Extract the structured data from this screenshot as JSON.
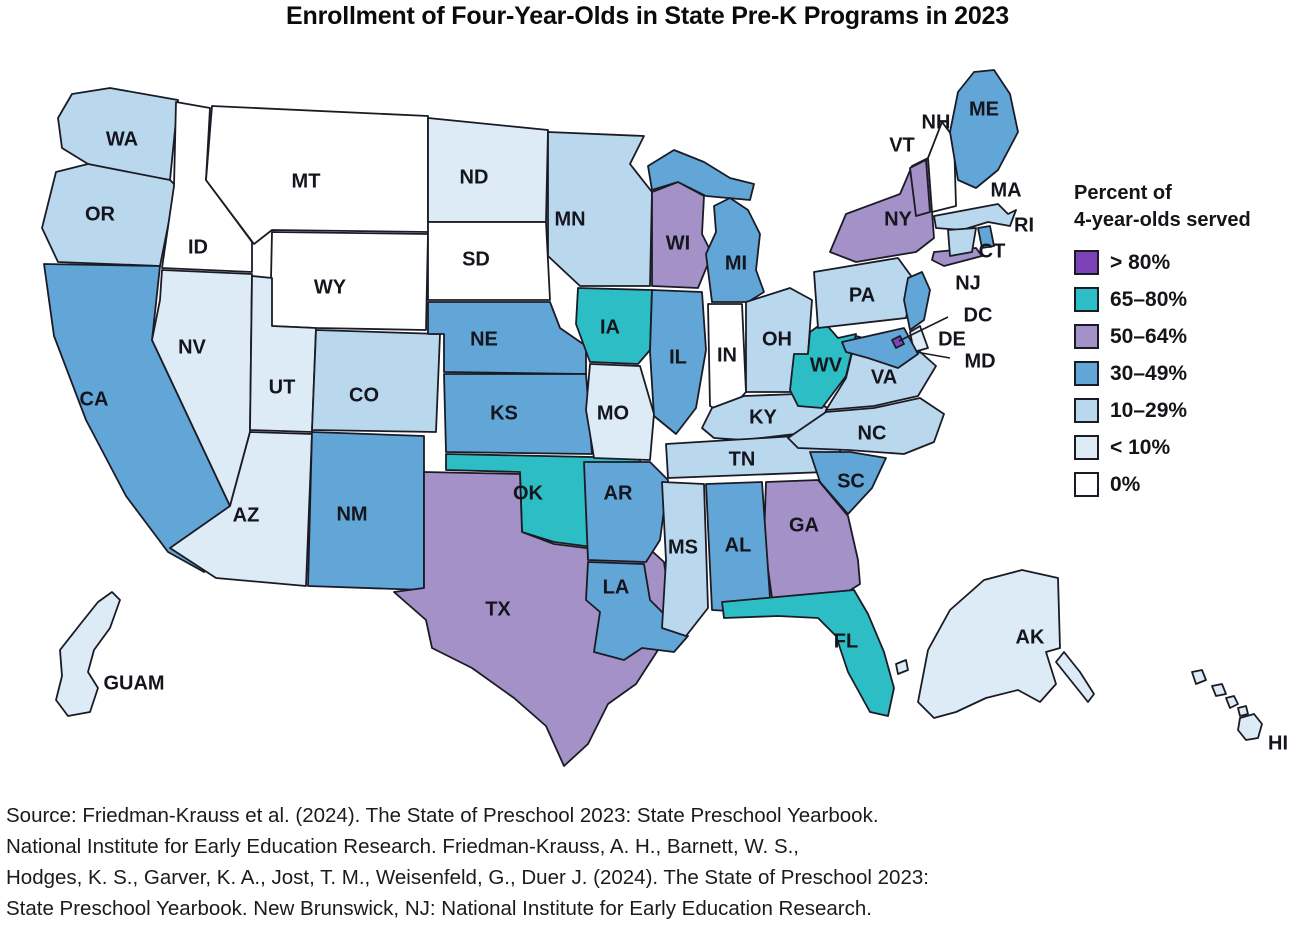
{
  "title": "Enrollment of Four-Year-Olds in State Pre-K Programs in 2023",
  "legend": {
    "title_line1": "Percent of",
    "title_line2": "4-year-olds served",
    "items": [
      {
        "label": "> 80%",
        "color": "#7b43b5"
      },
      {
        "label": "65–80%",
        "color": "#2dbdc5"
      },
      {
        "label": "50–64%",
        "color": "#a391c7"
      },
      {
        "label": "30–49%",
        "color": "#61a6d7"
      },
      {
        "label": "10–29%",
        "color": "#b9d8ee"
      },
      {
        "label": "< 10%",
        "color": "#dcebf5"
      },
      {
        "label": "0%",
        "color": "#ffffff"
      }
    ]
  },
  "map": {
    "border_color": "#1b1b26",
    "label_color": "#15151d"
  },
  "chart_data": {
    "type": "choropleth",
    "title": "Enrollment of Four-Year-Olds in State Pre-K Programs in 2023",
    "legend_title": "Percent of 4-year-olds served",
    "bins": [
      "> 80%",
      "65–80%",
      "50–64%",
      "30–49%",
      "10–29%",
      "< 10%",
      "0%"
    ],
    "states": [
      {
        "code": "WA",
        "category": "10–29%"
      },
      {
        "code": "OR",
        "category": "10–29%"
      },
      {
        "code": "CA",
        "category": "30–49%"
      },
      {
        "code": "NV",
        "category": "< 10%"
      },
      {
        "code": "ID",
        "category": "0%"
      },
      {
        "code": "MT",
        "category": "0%"
      },
      {
        "code": "WY",
        "category": "0%"
      },
      {
        "code": "UT",
        "category": "< 10%"
      },
      {
        "code": "AZ",
        "category": "< 10%"
      },
      {
        "code": "CO",
        "category": "10–29%"
      },
      {
        "code": "NM",
        "category": "30–49%"
      },
      {
        "code": "ND",
        "category": "< 10%"
      },
      {
        "code": "SD",
        "category": "0%"
      },
      {
        "code": "NE",
        "category": "30–49%"
      },
      {
        "code": "KS",
        "category": "30–49%"
      },
      {
        "code": "OK",
        "category": "65–80%"
      },
      {
        "code": "TX",
        "category": "50–64%"
      },
      {
        "code": "MN",
        "category": "10–29%"
      },
      {
        "code": "IA",
        "category": "65–80%"
      },
      {
        "code": "MO",
        "category": "< 10%"
      },
      {
        "code": "AR",
        "category": "30–49%"
      },
      {
        "code": "LA",
        "category": "30–49%"
      },
      {
        "code": "WI",
        "category": "50–64%"
      },
      {
        "code": "IL",
        "category": "30–49%"
      },
      {
        "code": "MS",
        "category": "10–29%"
      },
      {
        "code": "MI",
        "category": "30–49%"
      },
      {
        "code": "IN",
        "category": "0%"
      },
      {
        "code": "OH",
        "category": "10–29%"
      },
      {
        "code": "KY",
        "category": "10–29%"
      },
      {
        "code": "TN",
        "category": "10–29%"
      },
      {
        "code": "WV",
        "category": "65–80%"
      },
      {
        "code": "VA",
        "category": "10–29%"
      },
      {
        "code": "NC",
        "category": "10–29%"
      },
      {
        "code": "SC",
        "category": "30–49%"
      },
      {
        "code": "GA",
        "category": "50–64%"
      },
      {
        "code": "AL",
        "category": "30–49%"
      },
      {
        "code": "FL",
        "category": "65–80%"
      },
      {
        "code": "PA",
        "category": "10–29%"
      },
      {
        "code": "NY",
        "category": "50–64%"
      },
      {
        "code": "VT",
        "category": "50–64%"
      },
      {
        "code": "NH",
        "category": "0%"
      },
      {
        "code": "ME",
        "category": "30–49%"
      },
      {
        "code": "MA",
        "category": "10–29%"
      },
      {
        "code": "RI",
        "category": "30–49%"
      },
      {
        "code": "CT",
        "category": "10–29%"
      },
      {
        "code": "NJ",
        "category": "30–49%"
      },
      {
        "code": "DE",
        "category": "< 10%"
      },
      {
        "code": "MD",
        "category": "30–49%"
      },
      {
        "code": "DC",
        "category": "> 80%"
      },
      {
        "code": "AK",
        "category": "< 10%"
      },
      {
        "code": "HI",
        "category": "< 10%"
      },
      {
        "code": "GUAM",
        "category": "< 10%"
      }
    ]
  },
  "source_lines": [
    "Source: Friedman-Krauss et al. (2024). The State of Preschool 2023: State Preschool Yearbook.",
    "National Institute for Early Education Research. Friedman-Krauss, A. H., Barnett, W. S.,",
    "Hodges, K. S., Garver, K. A., Jost, T. M., Weisenfeld, G., Duer J. (2024). The State of Preschool 2023:",
    "State Preschool Yearbook. New Brunswick, NJ: National Institute for Early Education Research."
  ]
}
